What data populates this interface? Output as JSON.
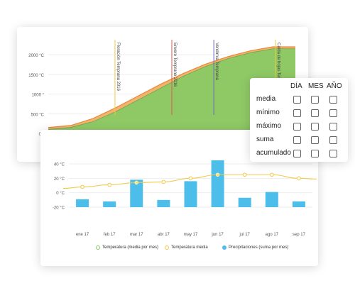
{
  "top_chart": {
    "y_ticks": [
      "2000 °C",
      "1500 °C",
      "1000 °",
      "500 °C",
      "0 °"
    ],
    "y_values": [
      2000,
      1500,
      1000,
      500,
      0
    ],
    "annotations": [
      {
        "label": "Floración Temprana 2016",
        "color": "#f0c93c",
        "at": 0.27
      },
      {
        "label": "Envero Temprano 2016",
        "color": "#e0554c",
        "at": 0.5
      },
      {
        "label": "Vendimia Temprana",
        "color": "#6b63b5",
        "at": 0.67
      },
      {
        "label": "Caída de hojas Tem",
        "color": "#f0c93c",
        "at": 0.92
      }
    ],
    "colors": {
      "area_green": "#8fc966",
      "area_orange": "#f2b36e",
      "line_orange": "#e8893a"
    }
  },
  "bottom_chart": {
    "y_ticks": [
      "40 °C",
      "20 °C",
      "0 °C",
      "-20 °C"
    ],
    "categories": [
      "ene 17",
      "feb 17",
      "mar 17",
      "abr 17",
      "may 17",
      "jun 17",
      "jul 17",
      "ago 17",
      "sep 17"
    ],
    "bar_values": [
      -9,
      -12,
      18,
      -10,
      16,
      45,
      -7,
      1,
      -12
    ],
    "line_values": [
      8,
      11,
      14,
      15,
      20,
      25,
      25,
      25,
      20
    ],
    "legend": [
      {
        "label": "Temperatura (media por mes)",
        "color": "#8fc966"
      },
      {
        "label": "Temperatura media",
        "color": "#f3c84a"
      },
      {
        "label": "Precipitaciones (suma por mes)",
        "color": "#4dbde9"
      }
    ]
  },
  "aggregation": {
    "columns": [
      "DÍA",
      "MES",
      "AÑO"
    ],
    "rows": [
      "media",
      "mínimo",
      "máximo",
      "suma",
      "acumulado"
    ]
  },
  "chart_data": [
    {
      "type": "area",
      "y_ticks": [
        "2000 °C",
        "1500 °C",
        "1000 °",
        "500 °C",
        "0 °"
      ],
      "ylim": [
        0,
        2200
      ],
      "series": [
        {
          "values": [
            100,
            150,
            300,
            550,
            850,
            1150,
            1450,
            1700,
            1900,
            2050,
            2150,
            2150
          ]
        },
        {
          "values": [
            150,
            200,
            380,
            650,
            950,
            1250,
            1520,
            1760,
            1950,
            2100,
            2200,
            2200
          ]
        }
      ],
      "annotations": [
        "Floración Temprana 2016",
        "Envero Temprano 2016",
        "Vendimia Temprana",
        "Caída de hojas Tem"
      ]
    },
    {
      "type": "bar",
      "categories": [
        "ene 17",
        "feb 17",
        "mar 17",
        "abr 17",
        "may 17",
        "jun 17",
        "jul 17",
        "ago 17",
        "sep 17"
      ],
      "y_ticks": [
        "40 °C",
        "20 °C",
        "0 °C",
        "-20 °C"
      ],
      "ylim": [
        -20,
        45
      ],
      "series": [
        {
          "name": "Precipitaciones (suma por mes)",
          "values": [
            -9,
            -12,
            18,
            -10,
            16,
            45,
            -7,
            1,
            -12
          ]
        },
        {
          "name": "Temperatura media",
          "values": [
            8,
            11,
            14,
            15,
            20,
            25,
            25,
            25,
            20
          ]
        }
      ],
      "legend": [
        "Temperatura (media por mes)",
        "Temperatura media",
        "Precipitaciones (suma por mes)"
      ]
    }
  ]
}
